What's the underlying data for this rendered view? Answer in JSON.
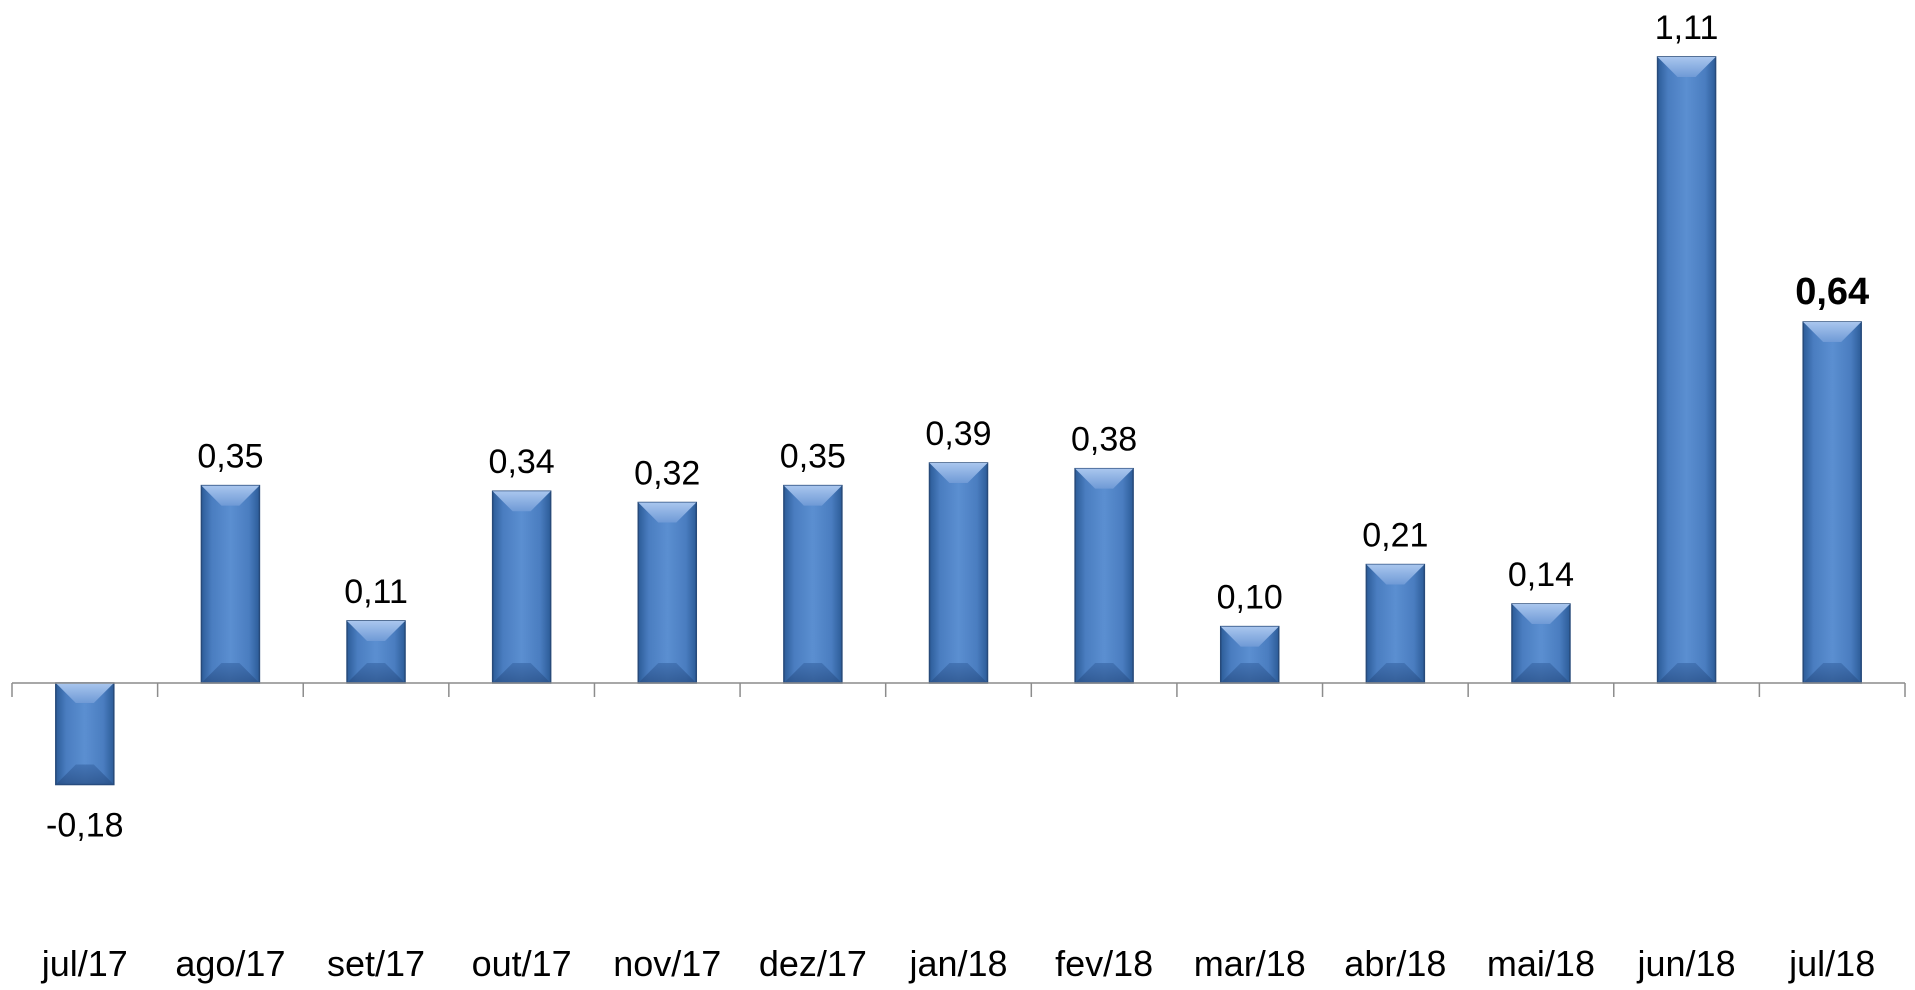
{
  "chart_data": {
    "type": "bar",
    "title": "",
    "xlabel": "",
    "ylabel": "",
    "categories": [
      "jul/17",
      "ago/17",
      "set/17",
      "out/17",
      "nov/17",
      "dez/17",
      "jan/18",
      "fev/18",
      "mar/18",
      "abr/18",
      "mai/18",
      "jun/18",
      "jul/18"
    ],
    "values": [
      -0.18,
      0.35,
      0.11,
      0.34,
      0.32,
      0.35,
      0.39,
      0.38,
      0.1,
      0.21,
      0.14,
      1.11,
      0.64
    ],
    "data_labels": [
      "-0,18",
      "0,35",
      "0,11",
      "0,34",
      "0,32",
      "0,35",
      "0,39",
      "0,38",
      "0,10",
      "0,21",
      "0,14",
      "1,11",
      "0,64"
    ],
    "highlighted_label": "0,64",
    "ylim": [
      -0.18,
      1.11
    ],
    "grid": false,
    "legend": "none",
    "colors": {
      "bar_fill": "#4f81bd",
      "bar_highlight": "#95b3e6",
      "bar_edge": "#274a7a",
      "axis": "#8c8c8c"
    }
  }
}
